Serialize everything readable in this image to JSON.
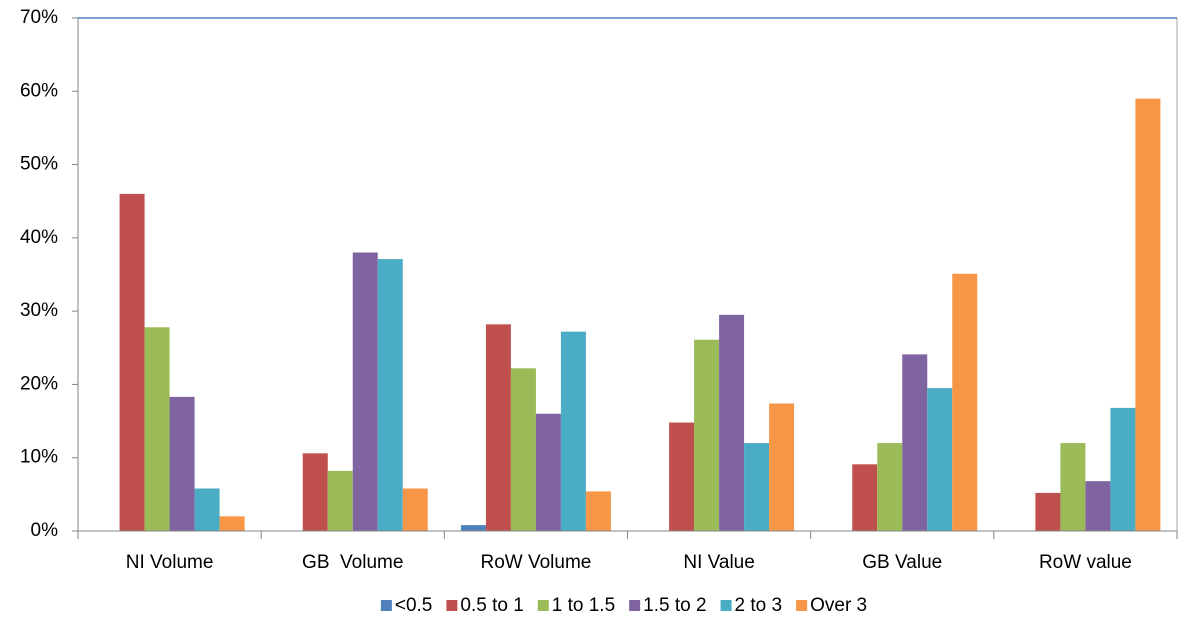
{
  "chart_data": {
    "type": "bar",
    "categories": [
      "NI Volume",
      "GB  Volume",
      "RoW Volume",
      "NI Value",
      "GB Value",
      "RoW value"
    ],
    "series": [
      {
        "name": "<0.5",
        "color": "#4f81bd",
        "values": [
          0,
          0,
          0.8,
          0,
          0,
          0
        ]
      },
      {
        "name": "0.5 to 1",
        "color": "#c0504d",
        "values": [
          46,
          10.6,
          28.2,
          14.8,
          9.1,
          5.2
        ]
      },
      {
        "name": "1 to 1.5",
        "color": "#9bbb59",
        "values": [
          27.8,
          8.2,
          22.2,
          26.1,
          12,
          12
        ]
      },
      {
        "name": "1.5 to 2",
        "color": "#8064a2",
        "values": [
          18.3,
          38,
          16,
          29.5,
          24.1,
          6.8
        ]
      },
      {
        "name": "2 to 3",
        "color": "#4bacc6",
        "values": [
          5.8,
          37.1,
          27.2,
          12,
          19.5,
          16.8
        ]
      },
      {
        "name": "Over 3",
        "color": "#f79646",
        "values": [
          2,
          5.8,
          5.4,
          17.4,
          35.1,
          59
        ]
      }
    ],
    "ylim": [
      0,
      70
    ],
    "yticks": [
      {
        "value": 0,
        "label": "0%"
      },
      {
        "value": 10,
        "label": "10%"
      },
      {
        "value": 20,
        "label": "20%"
      },
      {
        "value": 30,
        "label": "30%"
      },
      {
        "value": 40,
        "label": "40%"
      },
      {
        "value": 50,
        "label": "50%"
      },
      {
        "value": 60,
        "label": "60%"
      },
      {
        "value": 70,
        "label": "70%"
      }
    ],
    "legend": "bottom"
  }
}
